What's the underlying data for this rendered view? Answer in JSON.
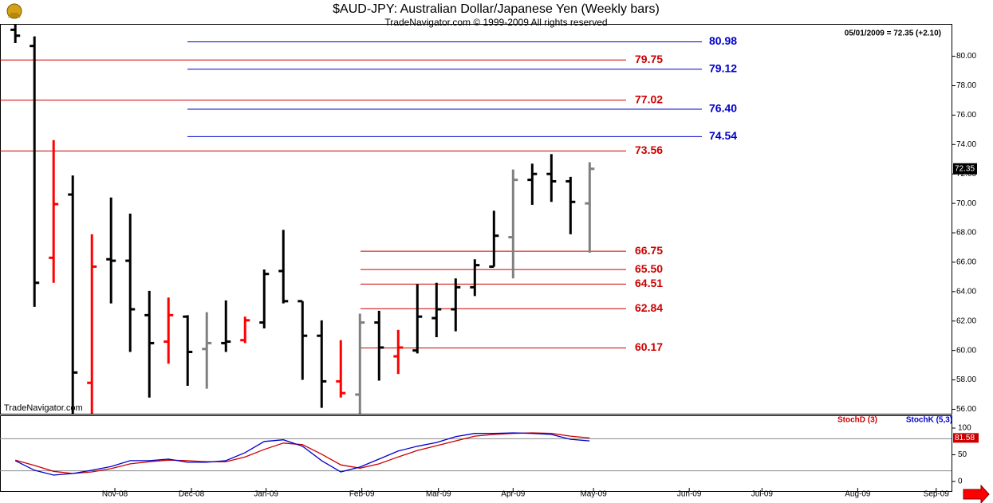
{
  "chart_data": [
    {
      "type": "ohlc",
      "title": "$AUD-JPY:  Australian Dollar/Japanese Yen  (Weekly bars)",
      "subtitle": "TradeNavigator.com © 1999-2009 All rights reserved",
      "watermark": "TradeNavigator.com",
      "info": "05/01/2009 = 72.35 (+2.10)",
      "x": [
        0,
        1,
        2,
        3,
        4,
        5,
        6,
        7,
        8,
        9,
        10,
        11,
        12,
        13,
        14,
        15,
        16,
        17,
        18,
        19,
        20,
        21,
        22,
        23,
        24,
        25,
        26,
        27,
        28,
        29,
        30
      ],
      "open": [
        81.8,
        80.7,
        66.3,
        70.6,
        57.8,
        66.2,
        66.1,
        62.4,
        60.6,
        62.3,
        60.1,
        60.5,
        60.7,
        61.9,
        65.4,
        63.35,
        61.0,
        57.9,
        57.0,
        61.9,
        59.6,
        60.0,
        62.2,
        62.8,
        64.3,
        65.7,
        67.7,
        71.6,
        72.0,
        71.5,
        70.0
      ],
      "high": [
        82.2,
        81.35,
        74.3,
        71.9,
        67.9,
        70.4,
        69.3,
        64.05,
        63.6,
        62.4,
        62.6,
        63.4,
        62.3,
        65.5,
        68.2,
        63.35,
        62.05,
        60.7,
        62.5,
        62.7,
        61.4,
        64.5,
        64.6,
        64.9,
        66.2,
        69.5,
        72.3,
        72.7,
        73.35,
        71.8,
        72.8
      ],
      "low": [
        80.9,
        62.97,
        64.6,
        55.7,
        55.7,
        63.2,
        59.9,
        56.8,
        59.1,
        57.6,
        57.4,
        59.9,
        60.5,
        61.5,
        63.2,
        58.0,
        56.1,
        56.8,
        55.7,
        57.95,
        58.4,
        59.8,
        60.9,
        61.3,
        63.7,
        65.7,
        64.9,
        69.9,
        70.1,
        67.9,
        66.65
      ],
      "close": [
        81.4,
        64.6,
        69.95,
        58.5,
        65.7,
        66.1,
        62.8,
        60.5,
        62.4,
        59.9,
        60.5,
        60.6,
        62.05,
        65.2,
        63.35,
        61.0,
        57.9,
        57.1,
        61.9,
        60.2,
        60.2,
        62.3,
        62.8,
        64.3,
        65.8,
        67.8,
        71.6,
        72.0,
        71.5,
        70.1,
        72.35
      ],
      "bar_colors": [
        "#000000",
        "#000000",
        "#ff0000",
        "#000000",
        "#ff0000",
        "#000000",
        "#000000",
        "#000000",
        "#ff0000",
        "#000000",
        "#808080",
        "#000000",
        "#ff0000",
        "#000000",
        "#000000",
        "#000000",
        "#000000",
        "#ff0000",
        "#808080",
        "#000000",
        "#ff0000",
        "#000000",
        "#000000",
        "#000000",
        "#000000",
        "#000000",
        "#808080",
        "#000000",
        "#000000",
        "#000000",
        "#808080"
      ],
      "xlim": [
        -0.8,
        48.9
      ],
      "xticks": [
        {
          "value": 5.2,
          "label": "Nov-08"
        },
        {
          "value": 9.2,
          "label": "Dec-08"
        },
        {
          "value": 13.1,
          "label": "Jan-09"
        },
        {
          "value": 18.1,
          "label": "Feb-09"
        },
        {
          "value": 22.1,
          "label": "Mar-09"
        },
        {
          "value": 26.0,
          "label": "Apr-09"
        },
        {
          "value": 30.2,
          "label": "May-09"
        },
        {
          "value": 35.2,
          "label": "Jun-09"
        },
        {
          "value": 39.0,
          "label": "Jul-09"
        },
        {
          "value": 44.0,
          "label": "Aug-09"
        },
        {
          "value": 48.1,
          "label": "Sep-09"
        }
      ],
      "ylim": [
        55.7,
        82.2
      ],
      "yticks": [
        {
          "value": 56,
          "label": "56.00"
        },
        {
          "value": 58,
          "label": "58.00"
        },
        {
          "value": 60,
          "label": "60.00"
        },
        {
          "value": 62,
          "label": "62.00"
        },
        {
          "value": 64,
          "label": "64.00"
        },
        {
          "value": 66,
          "label": "66.00"
        },
        {
          "value": 68,
          "label": "68.00"
        },
        {
          "value": 70,
          "label": "70.00"
        },
        {
          "value": 72,
          "label": "72.00"
        },
        {
          "value": 74,
          "label": "74.00"
        },
        {
          "value": 76,
          "label": "76.00"
        },
        {
          "value": 78,
          "label": "78.00"
        },
        {
          "value": 80,
          "label": "80.00"
        }
      ],
      "level_groups": [
        {
          "color": "#cc0000",
          "values": [
            79.75,
            77.02,
            73.56
          ]
        },
        {
          "color": "#cc0000",
          "values": [
            66.75,
            {
              "value": 65.5,
              "label": "65.50"
            },
            64.51,
            62.84,
            60.17
          ]
        },
        {
          "color": "#0000cc",
          "values": [
            80.98,
            79.12,
            {
              "value": 76.4,
              "label": "76.40"
            },
            74.54
          ]
        }
      ]
    },
    {
      "type": "line",
      "x": [
        0,
        1,
        2,
        3,
        4,
        5,
        6,
        7,
        8,
        9,
        10,
        11,
        12,
        13,
        14,
        15,
        16,
        17,
        18,
        19,
        20,
        21,
        22,
        23,
        24,
        25,
        26,
        27,
        28,
        29,
        30
      ],
      "xlim": [
        -0.8,
        48.9
      ],
      "ylim": [
        -16.4,
        122.4
      ],
      "yticks": [
        0,
        50,
        100
      ],
      "reference_lines": [
        20,
        80
      ],
      "series": [
        {
          "name": "StochD (3)",
          "color": "#cc0000",
          "values": [
            40,
            30,
            19,
            15,
            18,
            24,
            33,
            37,
            40,
            39,
            37,
            37,
            46,
            60,
            72,
            69,
            51,
            31,
            25,
            33,
            46,
            58,
            67,
            76,
            85,
            88,
            90,
            91,
            90,
            85,
            81.58
          ]
        },
        {
          "name": "StochK (5,3)",
          "color": "#0000cc",
          "values": [
            39,
            21,
            12,
            15,
            21,
            28,
            39,
            39,
            42,
            36,
            36,
            39,
            54,
            75,
            78,
            66,
            39,
            18,
            27,
            42,
            57,
            66,
            73,
            84,
            90,
            90,
            91,
            90,
            88,
            79,
            76
          ]
        }
      ]
    }
  ]
}
